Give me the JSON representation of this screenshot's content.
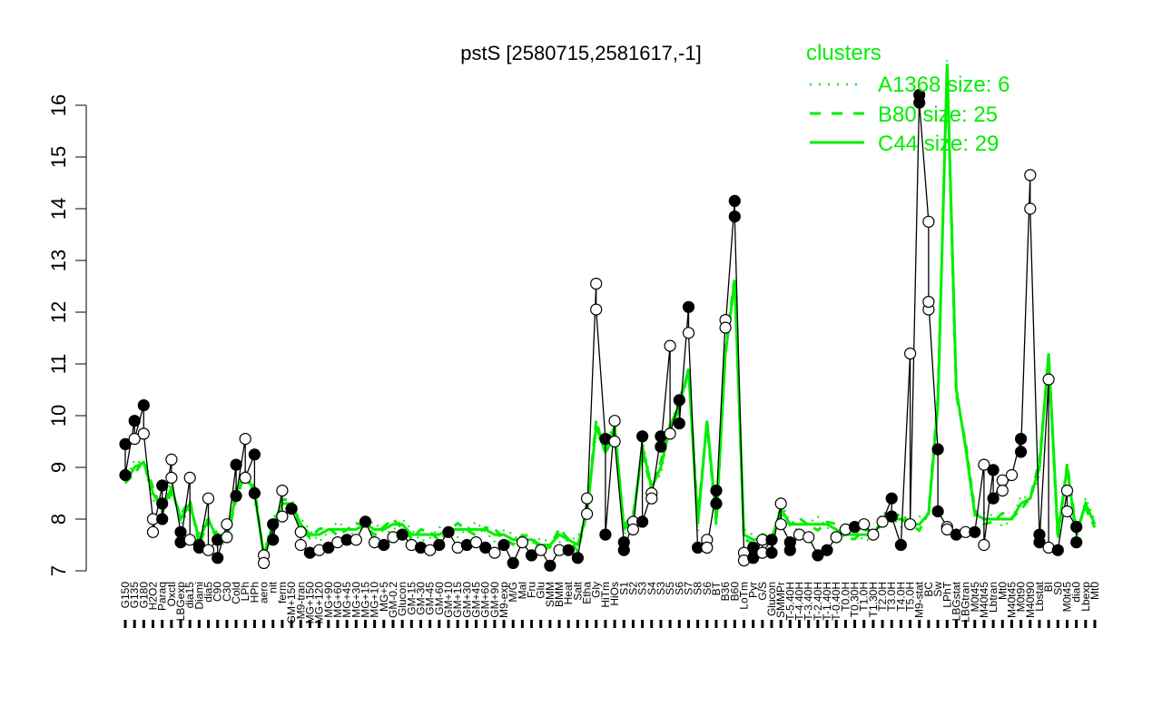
{
  "chart_data": {
    "type": "line",
    "title": "pstS [2580715,2581617,-1]",
    "xlabel": "",
    "ylabel": "",
    "ylim": [
      7,
      16
    ],
    "y_ticks": [
      "7",
      "8",
      "9",
      "10",
      "11",
      "12",
      "13",
      "14",
      "15",
      "16"
    ],
    "x_tick_labels": [
      "G150",
      "G135",
      "G180",
      "H2O2",
      "Paraq",
      "Oxctl",
      "LBGexp",
      "dia15",
      "Diami",
      "dia5",
      "C90",
      "C30",
      "Cold",
      "LPh",
      "HPh",
      "aero",
      "nit",
      "ferm",
      "GM+150",
      "M9-tran",
      "MG+150",
      "MG+120",
      "MG+90",
      "MG+60",
      "MG+45",
      "MG+30",
      "MG+15",
      "MG+10",
      "MG+5",
      "GM-0.2",
      "Glucon",
      "GM-15",
      "GM-30",
      "GM-45",
      "GM-60",
      "GM+10",
      "GM+15",
      "GM+30",
      "GM+45",
      "GM+60",
      "GM+90",
      "M9-exp",
      "M/G",
      "Mal",
      "Fru",
      "Glu",
      "SMM",
      "BMM",
      "Heat",
      "Salt",
      "Etha",
      "Gly",
      "HiTm",
      "HiOs",
      "S1",
      "S2",
      "S3",
      "S4",
      "S3",
      "S5",
      "S6",
      "S7",
      "S8",
      "S6",
      "BT",
      "B36",
      "B60",
      "LoTm",
      "Pyr",
      "G/S",
      "Glucon",
      "SMMPr",
      "T-5.40H",
      "T-4.40H",
      "T-3.40H",
      "T-2.40H",
      "T-1.40H",
      "T-0.40H",
      "T0.0H",
      "T0.30H",
      "T1.0H",
      "T1.30H",
      "T2.0H",
      "T3.0H",
      "T4.0H",
      "T5.0H",
      "M9-stat",
      "BC",
      "Sw",
      "LPhT",
      "LBGstat",
      "LBGtran",
      "M0t45",
      "M40t45",
      "Lbtran",
      "Mt0",
      "M40t45",
      "M0t90",
      "M40t90",
      "Lbstat",
      "BI",
      "S0",
      "M0t45",
      "dia0",
      "Lbexp",
      "Mt0"
    ],
    "legend": {
      "title": "clusters",
      "placement": "top-right",
      "entries": [
        {
          "label": "A1368 size: 6",
          "style": "dotted"
        },
        {
          "label": "B80 size: 25",
          "style": "dashed"
        },
        {
          "label": "C44 size: 29",
          "style": "solid"
        }
      ]
    },
    "colors": {
      "cluster_lines": "#00ee00",
      "points_line": "#000000",
      "axis": "#000000"
    },
    "cluster_mean": [
      8.7,
      9.0,
      9.1,
      8.5,
      8.2,
      8.6,
      8.0,
      8.3,
      7.6,
      8.0,
      7.6,
      7.6,
      8.5,
      8.9,
      8.5,
      7.3,
      7.9,
      8.3,
      8.3,
      7.9,
      7.7,
      7.7,
      7.8,
      7.8,
      7.8,
      7.8,
      7.9,
      7.8,
      7.8,
      7.9,
      7.9,
      7.7,
      7.7,
      7.7,
      7.7,
      7.8,
      7.8,
      7.8,
      7.8,
      7.8,
      7.7,
      7.7,
      7.6,
      7.6,
      7.6,
      7.5,
      7.5,
      7.7,
      7.6,
      7.5,
      8.1,
      9.8,
      9.3,
      9.8,
      7.8,
      8.0,
      9.4,
      8.6,
      9.0,
      9.8,
      10.2,
      10.9,
      7.9,
      9.9,
      8.0,
      11.2,
      12.6,
      7.7,
      7.6,
      7.6,
      7.6,
      8.2,
      7.9,
      7.9,
      7.9,
      7.9,
      7.9,
      7.8,
      7.7,
      7.7,
      7.7,
      7.7,
      8.0,
      8.0,
      8.0,
      7.9,
      7.9,
      8.1,
      10.2,
      16.8,
      10.5,
      9.4,
      8.1,
      8.0,
      8.0,
      8.0,
      8.0,
      8.3,
      8.4,
      9.0,
      11.2,
      7.7,
      9.0,
      7.7,
      8.3,
      7.9
    ],
    "points": [
      {
        "x": 0,
        "y": 9.45,
        "filled": true
      },
      {
        "x": 0,
        "y": 8.85,
        "filled": true
      },
      {
        "x": 1,
        "y": 9.9,
        "filled": true
      },
      {
        "x": 1,
        "y": 9.55,
        "filled": false
      },
      {
        "x": 2,
        "y": 10.2,
        "filled": true
      },
      {
        "x": 2,
        "y": 9.65,
        "filled": false
      },
      {
        "x": 3,
        "y": 8.0,
        "filled": false
      },
      {
        "x": 3,
        "y": 7.75,
        "filled": false
      },
      {
        "x": 4,
        "y": 8.65,
        "filled": true
      },
      {
        "x": 4,
        "y": 8.3,
        "filled": true
      },
      {
        "x": 4,
        "y": 8.0,
        "filled": true
      },
      {
        "x": 5,
        "y": 9.15,
        "filled": false
      },
      {
        "x": 5,
        "y": 8.8,
        "filled": false
      },
      {
        "x": 6,
        "y": 7.75,
        "filled": true
      },
      {
        "x": 6,
        "y": 7.55,
        "filled": true
      },
      {
        "x": 7,
        "y": 8.8,
        "filled": false
      },
      {
        "x": 7,
        "y": 7.6,
        "filled": false
      },
      {
        "x": 8,
        "y": 7.5,
        "filled": true
      },
      {
        "x": 8,
        "y": 7.45,
        "filled": true
      },
      {
        "x": 9,
        "y": 8.4,
        "filled": false
      },
      {
        "x": 9,
        "y": 7.4,
        "filled": false
      },
      {
        "x": 10,
        "y": 7.6,
        "filled": true
      },
      {
        "x": 10,
        "y": 7.25,
        "filled": true
      },
      {
        "x": 11,
        "y": 7.9,
        "filled": false
      },
      {
        "x": 11,
        "y": 7.65,
        "filled": false
      },
      {
        "x": 12,
        "y": 9.05,
        "filled": true
      },
      {
        "x": 12,
        "y": 8.45,
        "filled": true
      },
      {
        "x": 13,
        "y": 9.55,
        "filled": false
      },
      {
        "x": 13,
        "y": 8.8,
        "filled": false
      },
      {
        "x": 14,
        "y": 9.25,
        "filled": true
      },
      {
        "x": 14,
        "y": 8.5,
        "filled": true
      },
      {
        "x": 15,
        "y": 7.3,
        "filled": false
      },
      {
        "x": 15,
        "y": 7.15,
        "filled": false
      },
      {
        "x": 16,
        "y": 7.9,
        "filled": true
      },
      {
        "x": 16,
        "y": 7.6,
        "filled": true
      },
      {
        "x": 17,
        "y": 8.55,
        "filled": false
      },
      {
        "x": 17,
        "y": 8.05,
        "filled": false
      },
      {
        "x": 18,
        "y": 8.2,
        "filled": true
      },
      {
        "x": 19,
        "y": 7.75,
        "filled": false
      },
      {
        "x": 19,
        "y": 7.5,
        "filled": false
      },
      {
        "x": 20,
        "y": 7.35,
        "filled": true
      },
      {
        "x": 21,
        "y": 7.4,
        "filled": false
      },
      {
        "x": 22,
        "y": 7.45,
        "filled": true
      },
      {
        "x": 23,
        "y": 7.55,
        "filled": false
      },
      {
        "x": 24,
        "y": 7.6,
        "filled": true
      },
      {
        "x": 25,
        "y": 7.6,
        "filled": false
      },
      {
        "x": 26,
        "y": 7.95,
        "filled": true
      },
      {
        "x": 27,
        "y": 7.55,
        "filled": false
      },
      {
        "x": 28,
        "y": 7.5,
        "filled": true
      },
      {
        "x": 29,
        "y": 7.65,
        "filled": false
      },
      {
        "x": 30,
        "y": 7.7,
        "filled": true
      },
      {
        "x": 31,
        "y": 7.5,
        "filled": false
      },
      {
        "x": 32,
        "y": 7.45,
        "filled": true
      },
      {
        "x": 33,
        "y": 7.4,
        "filled": false
      },
      {
        "x": 34,
        "y": 7.5,
        "filled": true
      },
      {
        "x": 35,
        "y": 7.75,
        "filled": true
      },
      {
        "x": 36,
        "y": 7.45,
        "filled": false
      },
      {
        "x": 37,
        "y": 7.5,
        "filled": true
      },
      {
        "x": 38,
        "y": 7.55,
        "filled": false
      },
      {
        "x": 39,
        "y": 7.45,
        "filled": true
      },
      {
        "x": 40,
        "y": 7.35,
        "filled": false
      },
      {
        "x": 41,
        "y": 7.5,
        "filled": true
      },
      {
        "x": 42,
        "y": 7.15,
        "filled": true
      },
      {
        "x": 43,
        "y": 7.55,
        "filled": false
      },
      {
        "x": 44,
        "y": 7.3,
        "filled": true
      },
      {
        "x": 45,
        "y": 7.4,
        "filled": false
      },
      {
        "x": 46,
        "y": 7.1,
        "filled": true
      },
      {
        "x": 47,
        "y": 7.4,
        "filled": false
      },
      {
        "x": 48,
        "y": 7.4,
        "filled": true
      },
      {
        "x": 49,
        "y": 7.25,
        "filled": true
      },
      {
        "x": 50,
        "y": 8.4,
        "filled": false
      },
      {
        "x": 50,
        "y": 8.1,
        "filled": false
      },
      {
        "x": 51,
        "y": 12.55,
        "filled": false
      },
      {
        "x": 51,
        "y": 12.05,
        "filled": false
      },
      {
        "x": 52,
        "y": 9.55,
        "filled": true
      },
      {
        "x": 52,
        "y": 7.7,
        "filled": true
      },
      {
        "x": 53,
        "y": 9.9,
        "filled": false
      },
      {
        "x": 53,
        "y": 9.5,
        "filled": false
      },
      {
        "x": 54,
        "y": 7.55,
        "filled": true
      },
      {
        "x": 54,
        "y": 7.4,
        "filled": true
      },
      {
        "x": 55,
        "y": 7.95,
        "filled": false
      },
      {
        "x": 55,
        "y": 7.8,
        "filled": false
      },
      {
        "x": 56,
        "y": 9.6,
        "filled": true
      },
      {
        "x": 56,
        "y": 7.95,
        "filled": true
      },
      {
        "x": 57,
        "y": 8.5,
        "filled": false
      },
      {
        "x": 57,
        "y": 8.4,
        "filled": false
      },
      {
        "x": 58,
        "y": 9.6,
        "filled": true
      },
      {
        "x": 58,
        "y": 9.4,
        "filled": true
      },
      {
        "x": 59,
        "y": 11.35,
        "filled": false
      },
      {
        "x": 59,
        "y": 9.65,
        "filled": false
      },
      {
        "x": 60,
        "y": 10.3,
        "filled": true
      },
      {
        "x": 60,
        "y": 9.85,
        "filled": true
      },
      {
        "x": 61,
        "y": 12.1,
        "filled": true
      },
      {
        "x": 61,
        "y": 11.6,
        "filled": false
      },
      {
        "x": 62,
        "y": 7.45,
        "filled": true
      },
      {
        "x": 63,
        "y": 7.6,
        "filled": false
      },
      {
        "x": 63,
        "y": 7.45,
        "filled": false
      },
      {
        "x": 64,
        "y": 8.55,
        "filled": true
      },
      {
        "x": 64,
        "y": 8.3,
        "filled": true
      },
      {
        "x": 65,
        "y": 11.85,
        "filled": false
      },
      {
        "x": 65,
        "y": 11.7,
        "filled": false
      },
      {
        "x": 66,
        "y": 14.15,
        "filled": true
      },
      {
        "x": 66,
        "y": 13.85,
        "filled": true
      },
      {
        "x": 67,
        "y": 7.35,
        "filled": false
      },
      {
        "x": 67,
        "y": 7.2,
        "filled": false
      },
      {
        "x": 68,
        "y": 7.45,
        "filled": true
      },
      {
        "x": 68,
        "y": 7.25,
        "filled": true
      },
      {
        "x": 69,
        "y": 7.6,
        "filled": false
      },
      {
        "x": 69,
        "y": 7.35,
        "filled": false
      },
      {
        "x": 70,
        "y": 7.6,
        "filled": true
      },
      {
        "x": 70,
        "y": 7.35,
        "filled": true
      },
      {
        "x": 71,
        "y": 8.3,
        "filled": false
      },
      {
        "x": 71,
        "y": 7.9,
        "filled": false
      },
      {
        "x": 72,
        "y": 7.55,
        "filled": true
      },
      {
        "x": 72,
        "y": 7.4,
        "filled": true
      },
      {
        "x": 73,
        "y": 7.7,
        "filled": false
      },
      {
        "x": 74,
        "y": 7.65,
        "filled": false
      },
      {
        "x": 75,
        "y": 7.3,
        "filled": true
      },
      {
        "x": 76,
        "y": 7.4,
        "filled": true
      },
      {
        "x": 77,
        "y": 7.65,
        "filled": false
      },
      {
        "x": 78,
        "y": 7.8,
        "filled": false
      },
      {
        "x": 79,
        "y": 7.85,
        "filled": true
      },
      {
        "x": 80,
        "y": 7.9,
        "filled": false
      },
      {
        "x": 81,
        "y": 7.7,
        "filled": false
      },
      {
        "x": 82,
        "y": 7.95,
        "filled": false
      },
      {
        "x": 83,
        "y": 8.4,
        "filled": true
      },
      {
        "x": 83,
        "y": 8.05,
        "filled": true
      },
      {
        "x": 84,
        "y": 7.5,
        "filled": true
      },
      {
        "x": 85,
        "y": 11.2,
        "filled": false
      },
      {
        "x": 85,
        "y": 7.9,
        "filled": false
      },
      {
        "x": 86,
        "y": 16.2,
        "filled": true
      },
      {
        "x": 86,
        "y": 16.05,
        "filled": true
      },
      {
        "x": 87,
        "y": 13.75,
        "filled": false
      },
      {
        "x": 87,
        "y": 12.05,
        "filled": false
      },
      {
        "x": 87,
        "y": 12.2,
        "filled": false
      },
      {
        "x": 88,
        "y": 9.35,
        "filled": true
      },
      {
        "x": 88,
        "y": 8.15,
        "filled": true
      },
      {
        "x": 89,
        "y": 7.85,
        "filled": false
      },
      {
        "x": 89,
        "y": 7.8,
        "filled": false
      },
      {
        "x": 90,
        "y": 7.7,
        "filled": true
      },
      {
        "x": 91,
        "y": 7.75,
        "filled": false
      },
      {
        "x": 92,
        "y": 7.75,
        "filled": true
      },
      {
        "x": 93,
        "y": 9.05,
        "filled": false
      },
      {
        "x": 93,
        "y": 7.5,
        "filled": false
      },
      {
        "x": 94,
        "y": 8.95,
        "filled": true
      },
      {
        "x": 94,
        "y": 8.4,
        "filled": true
      },
      {
        "x": 95,
        "y": 8.75,
        "filled": false
      },
      {
        "x": 95,
        "y": 8.55,
        "filled": false
      },
      {
        "x": 96,
        "y": 8.85,
        "filled": false
      },
      {
        "x": 97,
        "y": 9.55,
        "filled": true
      },
      {
        "x": 97,
        "y": 9.3,
        "filled": true
      },
      {
        "x": 98,
        "y": 14.65,
        "filled": false
      },
      {
        "x": 98,
        "y": 14.0,
        "filled": false
      },
      {
        "x": 99,
        "y": 7.7,
        "filled": true
      },
      {
        "x": 99,
        "y": 7.55,
        "filled": true
      },
      {
        "x": 100,
        "y": 10.7,
        "filled": false
      },
      {
        "x": 100,
        "y": 7.45,
        "filled": false
      },
      {
        "x": 101,
        "y": 7.4,
        "filled": true
      },
      {
        "x": 102,
        "y": 8.55,
        "filled": false
      },
      {
        "x": 102,
        "y": 8.15,
        "filled": false
      },
      {
        "x": 103,
        "y": 7.85,
        "filled": true
      },
      {
        "x": 103,
        "y": 7.55,
        "filled": true
      }
    ]
  }
}
